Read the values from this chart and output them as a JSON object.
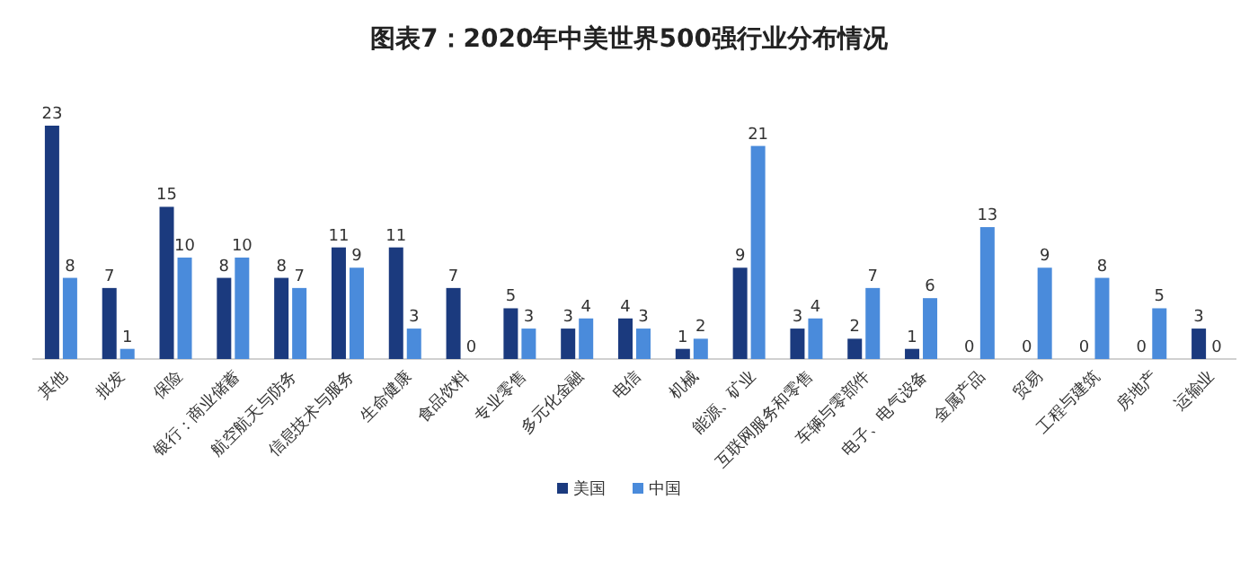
{
  "chart_data": {
    "type": "bar",
    "title": "图表7：2020年中美世界500强行业分布情况",
    "categories": [
      "其他",
      "批发",
      "保险",
      "银行：商业储蓄",
      "航空航天与防务",
      "信息技术与服务",
      "生命健康",
      "食品饮料",
      "专业零售",
      "多元化金融",
      "电信",
      "机械",
      "能源、矿业",
      "互联网服务和零售",
      "车辆与零部件",
      "电子、电气设备",
      "金属产品",
      "贸易",
      "工程与建筑",
      "房地产",
      "运输业"
    ],
    "series": [
      {
        "name": "美国",
        "color": "#1b3a7e",
        "values": [
          23,
          7,
          15,
          8,
          8,
          11,
          11,
          7,
          5,
          3,
          4,
          1,
          9,
          3,
          2,
          1,
          0,
          0,
          0,
          0,
          3
        ]
      },
      {
        "name": "中国",
        "color": "#4a8bdb",
        "values": [
          8,
          1,
          10,
          10,
          7,
          9,
          3,
          0,
          3,
          4,
          3,
          2,
          21,
          4,
          7,
          6,
          13,
          9,
          8,
          5,
          0
        ]
      }
    ],
    "data_labels": true,
    "legend": "bottom"
  }
}
